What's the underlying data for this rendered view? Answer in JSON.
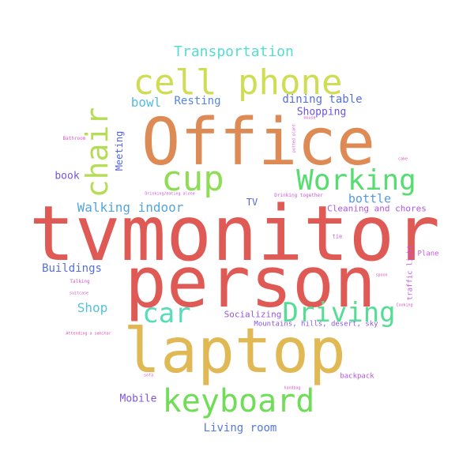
{
  "words": [
    {
      "id": "word-tvmonitor",
      "text": "tvmonitor",
      "color": "#e05a55",
      "vertical": false
    },
    {
      "id": "word-person",
      "text": "person",
      "color": "#e05a55",
      "vertical": false
    },
    {
      "id": "word-office",
      "text": "Office",
      "color": "#dd8a55",
      "vertical": false
    },
    {
      "id": "word-laptop",
      "text": "laptop",
      "color": "#e0b955",
      "vertical": false
    },
    {
      "id": "word-cell-phone",
      "text": "cell phone",
      "color": "#cfdd55",
      "vertical": false
    },
    {
      "id": "word-keyboard",
      "text": "keyboard",
      "color": "#6fdd55",
      "vertical": false
    },
    {
      "id": "word-cup",
      "text": "cup",
      "color": "#8fdd55",
      "vertical": false
    },
    {
      "id": "word-working",
      "text": "Working",
      "color": "#55dd6f",
      "vertical": false
    },
    {
      "id": "word-chair",
      "text": "chair",
      "color": "#b4dd55",
      "vertical": true
    },
    {
      "id": "word-driving",
      "text": "Driving",
      "color": "#55dd95",
      "vertical": false
    },
    {
      "id": "word-car",
      "text": "car",
      "color": "#55ddb9",
      "vertical": false
    },
    {
      "id": "word-transportation",
      "text": "Transportation",
      "color": "#55ddd0",
      "vertical": false
    },
    {
      "id": "word-walking-indoor",
      "text": "Walking indoor",
      "color": "#55a5dd",
      "vertical": false
    },
    {
      "id": "word-bowl",
      "text": "bowl",
      "color": "#55bddd",
      "vertical": false
    },
    {
      "id": "word-shop",
      "text": "Shop",
      "color": "#55c2dd",
      "vertical": false
    },
    {
      "id": "word-bottle",
      "text": "bottle",
      "color": "#559add",
      "vertical": false
    },
    {
      "id": "word-buildings",
      "text": "Buildings",
      "color": "#5570dd",
      "vertical": false
    },
    {
      "id": "word-resting",
      "text": "Resting",
      "color": "#5585dd",
      "vertical": false
    },
    {
      "id": "word-dining-table",
      "text": "dining table",
      "color": "#5570dd",
      "vertical": false
    },
    {
      "id": "word-living-room",
      "text": "Living room",
      "color": "#5579dd",
      "vertical": false
    },
    {
      "id": "word-shopping",
      "text": "Shopping",
      "color": "#6a55dd",
      "vertical": false
    },
    {
      "id": "word-meeting",
      "text": "Meeting",
      "color": "#5566dd",
      "vertical": true
    },
    {
      "id": "word-book",
      "text": "book",
      "color": "#7755dd",
      "vertical": false
    },
    {
      "id": "word-mobile",
      "text": "Mobile",
      "color": "#7a55dd",
      "vertical": false
    },
    {
      "id": "word-socializing",
      "text": "Socializing",
      "color": "#9b55dd",
      "vertical": false
    },
    {
      "id": "word-tv",
      "text": "TV",
      "color": "#5566dd",
      "vertical": false
    },
    {
      "id": "word-cleaning-and-chores",
      "text": "Cleaning and chores",
      "color": "#b055dd",
      "vertical": false
    },
    {
      "id": "word-mountains-hills-desert-sky",
      "text": "Mountains, hills, desert, sky",
      "color": "#8a55dd",
      "vertical": false
    },
    {
      "id": "word-traffic-light",
      "text": "traffic light",
      "color": "#c155dd",
      "vertical": true
    },
    {
      "id": "word-plane",
      "text": "Plane",
      "color": "#c755dd",
      "vertical": false
    },
    {
      "id": "word-backpack",
      "text": "backpack",
      "color": "#b455dd",
      "vertical": false
    },
    {
      "id": "word-tie",
      "text": "tie",
      "color": "#c955dd",
      "vertical": false
    },
    {
      "id": "word-drinking-together",
      "text": "Drinking together",
      "color": "#cc55dd",
      "vertical": false
    },
    {
      "id": "word-drinking-eating-alone",
      "text": "Drinking/eating alone",
      "color": "#d055dd",
      "vertical": false
    },
    {
      "id": "word-bathroom",
      "text": "Bathroom",
      "color": "#dd55c5",
      "vertical": false
    },
    {
      "id": "word-talking",
      "text": "Talking",
      "color": "#dd55cc",
      "vertical": false
    },
    {
      "id": "word-suitcase",
      "text": "suitcase",
      "color": "#dd55c8",
      "vertical": false
    },
    {
      "id": "word-attending-a-seminar",
      "text": "Attending a seminar",
      "color": "#dd55b0",
      "vertical": false
    },
    {
      "id": "word-potted-plant",
      "text": "potted plant",
      "color": "#dd55d2",
      "vertical": true
    },
    {
      "id": "word-mouse",
      "text": "mouse",
      "color": "#dd55d2",
      "vertical": false
    },
    {
      "id": "word-cake",
      "text": "cake",
      "color": "#dd55a8",
      "vertical": false
    },
    {
      "id": "word-spoon",
      "text": "spoon",
      "color": "#dd55c0",
      "vertical": false
    },
    {
      "id": "word-cooking",
      "text": "Cooking",
      "color": "#dd55b4",
      "vertical": false
    },
    {
      "id": "word-sofa",
      "text": "sofa",
      "color": "#dd55c3",
      "vertical": false
    },
    {
      "id": "word-handbag",
      "text": "handbag",
      "color": "#dd55c9",
      "vertical": false
    }
  ]
}
